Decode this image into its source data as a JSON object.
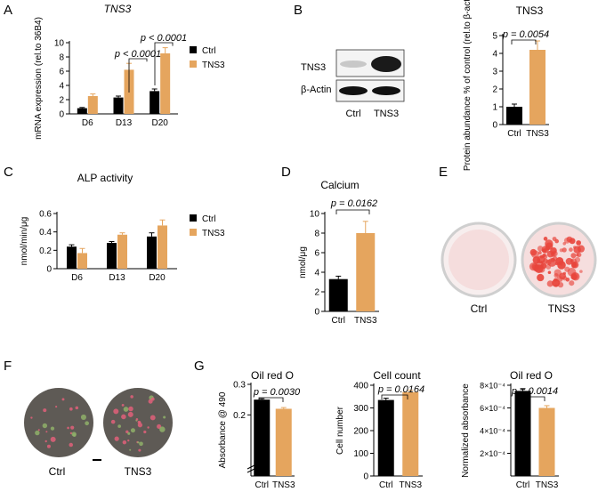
{
  "colors": {
    "ctrl": "#000000",
    "tns3": "#E5A55E",
    "stain_red": "#E8453C"
  },
  "panels": {
    "A": {
      "letter": "A",
      "title": "TNS3"
    },
    "B": {
      "letter": "B",
      "title": "TNS3",
      "blot_labels": [
        "TNS3",
        "β-Actin"
      ],
      "lanes": [
        "Ctrl",
        "TNS3"
      ]
    },
    "C": {
      "letter": "C",
      "title": "ALP activity"
    },
    "D": {
      "letter": "D",
      "title": "Calcium"
    },
    "E": {
      "letter": "E",
      "wells": [
        "Ctrl",
        "TNS3"
      ]
    },
    "F": {
      "letter": "F",
      "wells": [
        "Ctrl",
        "TNS3"
      ]
    },
    "G": {
      "letter": "G"
    }
  },
  "chart_data": [
    {
      "id": "A",
      "type": "bar",
      "title": "TNS3",
      "xlabel": "",
      "ylabel": "mRNA expression (rel.to 36B4)",
      "categories": [
        "D6",
        "D13",
        "D20"
      ],
      "series": [
        {
          "name": "Ctrl",
          "values": [
            0.8,
            2.3,
            3.2
          ],
          "errors": [
            0.1,
            0.2,
            0.3
          ]
        },
        {
          "name": "TNS3",
          "values": [
            2.5,
            6.2,
            8.5
          ],
          "errors": [
            0.3,
            0.9,
            0.8
          ]
        }
      ],
      "ylim": [
        0,
        10
      ],
      "yticks": [
        0,
        2,
        4,
        6,
        8,
        10
      ],
      "legend": [
        "Ctrl",
        "TNS3"
      ],
      "legend_position": "right",
      "annotations": [
        "p < 0.0001",
        "p < 0.0001"
      ]
    },
    {
      "id": "B",
      "type": "bar",
      "title": "TNS3",
      "xlabel": "",
      "ylabel": "Protein abundance % of control (rel.to β-actin)",
      "categories": [
        "Ctrl",
        "TNS3"
      ],
      "values": [
        1.0,
        4.2
      ],
      "errors": [
        0.15,
        0.5
      ],
      "ylim": [
        0,
        5
      ],
      "yticks": [
        0,
        1,
        2,
        3,
        4,
        5
      ],
      "annotations": [
        "p = 0.0054"
      ]
    },
    {
      "id": "C",
      "type": "bar",
      "title": "ALP activity",
      "xlabel": "",
      "ylabel": "nmol/min/μg",
      "categories": [
        "D6",
        "D13",
        "D20"
      ],
      "series": [
        {
          "name": "Ctrl",
          "values": [
            0.24,
            0.28,
            0.35
          ],
          "errors": [
            0.02,
            0.015,
            0.04
          ]
        },
        {
          "name": "TNS3",
          "values": [
            0.17,
            0.37,
            0.47
          ],
          "errors": [
            0.05,
            0.02,
            0.06
          ]
        }
      ],
      "ylim": [
        0,
        0.6
      ],
      "yticks": [
        0.0,
        0.2,
        0.4,
        0.6
      ],
      "legend": [
        "Ctrl",
        "TNS3"
      ],
      "legend_position": "right"
    },
    {
      "id": "D",
      "type": "bar",
      "title": "Calcium",
      "xlabel": "",
      "ylabel": "nmol/μg",
      "categories": [
        "Ctrl",
        "TNS3"
      ],
      "values": [
        3.3,
        8.0
      ],
      "errors": [
        0.3,
        1.2
      ],
      "ylim": [
        0,
        10
      ],
      "yticks": [
        0,
        2,
        4,
        6,
        8,
        10
      ],
      "annotations": [
        "p = 0.0162"
      ]
    },
    {
      "id": "G1",
      "type": "bar",
      "title": "Oil red O",
      "xlabel": "",
      "ylabel": "Absorbance @ 490",
      "categories": [
        "Ctrl",
        "TNS3"
      ],
      "values": [
        0.25,
        0.22
      ],
      "errors": [
        0.003,
        0.004
      ],
      "ylim": [
        0,
        0.3
      ],
      "yticks": [
        0.2,
        0.3
      ],
      "yticklabels": [
        "0.2",
        "0.3"
      ],
      "annotations": [
        "p = 0.0030"
      ]
    },
    {
      "id": "G2",
      "type": "bar",
      "title": "Cell count",
      "xlabel": "",
      "ylabel": "Cell number",
      "categories": [
        "Ctrl",
        "TNS3"
      ],
      "values": [
        335,
        370
      ],
      "errors": [
        8,
        8
      ],
      "ylim": [
        0,
        400
      ],
      "yticks": [
        0,
        100,
        200,
        300,
        400
      ],
      "annotations": [
        "p = 0.0164"
      ]
    },
    {
      "id": "G3",
      "type": "bar",
      "title": "Oil red O",
      "xlabel": "",
      "ylabel": "Normalized absorbance",
      "categories": [
        "Ctrl",
        "TNS3"
      ],
      "values": [
        0.00075,
        0.0006
      ],
      "errors": [
        2e-05,
        2e-05
      ],
      "ylim": [
        0,
        0.0008
      ],
      "yticks": [
        0.0002,
        0.0004,
        0.0006,
        0.0008
      ],
      "yticklabels": [
        "2×10⁻⁴",
        "4×10⁻⁴",
        "6×10⁻⁴",
        "8×10⁻⁴"
      ],
      "annotations": [
        "p = 0.0014"
      ]
    }
  ]
}
